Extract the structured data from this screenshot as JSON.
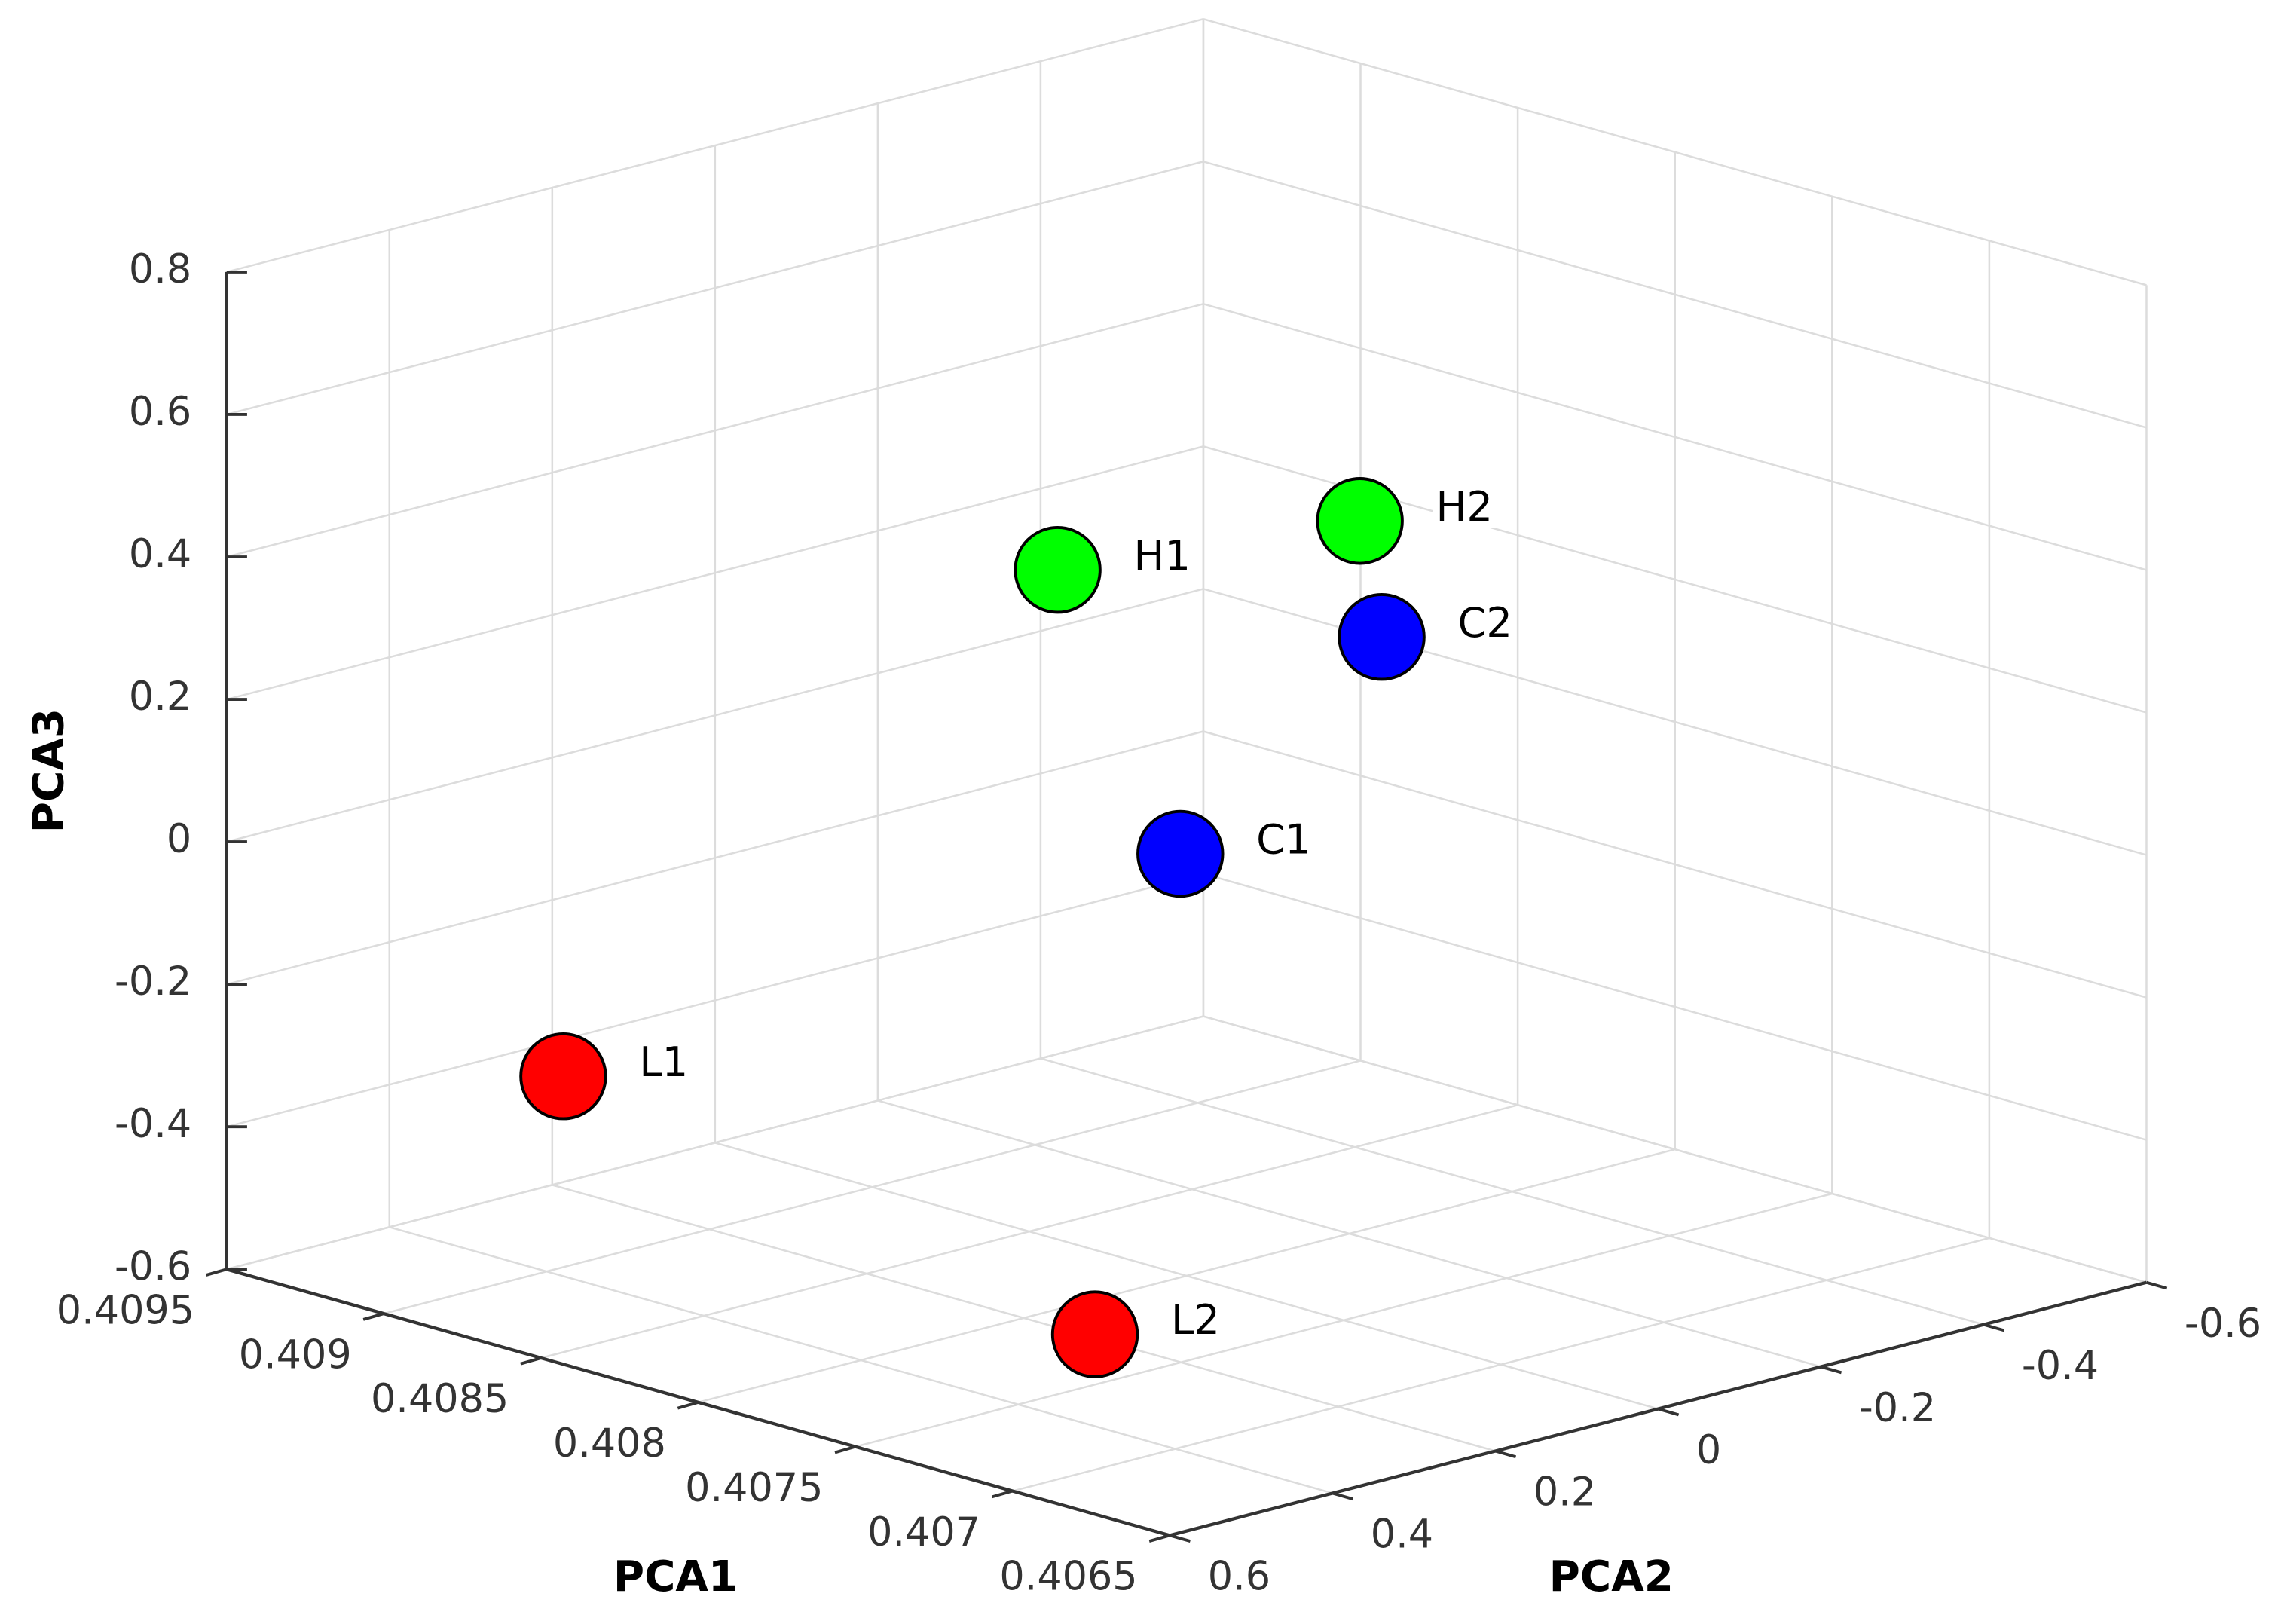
{
  "chart_data": {
    "type": "scatter3d",
    "xlabel": "PCA1",
    "ylabel": "PCA2",
    "zlabel": "PCA3",
    "xlim": [
      0.4065,
      0.4095
    ],
    "xticks": [
      0.4065,
      0.407,
      0.4075,
      0.408,
      0.4085,
      0.409,
      0.4095
    ],
    "ylim": [
      -0.6,
      0.6
    ],
    "yticks": [
      -0.6,
      -0.4,
      -0.2,
      0,
      0.2,
      0.4,
      0.6
    ],
    "zlim": [
      -0.6,
      0.8
    ],
    "zticks": [
      -0.6,
      -0.4,
      -0.2,
      0,
      0.2,
      0.4,
      0.6,
      0.8
    ],
    "grid": true,
    "series": [
      {
        "color": "#ff0000",
        "labels": [
          "L1",
          "L2"
        ],
        "x": [
          0.40874,
          0.40767
        ],
        "y": [
          0.48,
          0.24
        ],
        "z": [
          -0.27,
          -0.57
        ]
      },
      {
        "color": "#0000ff",
        "labels": [
          "C1",
          "C2"
        ],
        "x": [
          0.40802,
          0.40769
        ],
        "y": [
          0,
          -0.12
        ],
        "z": [
          -0.01,
          0.3
        ]
      },
      {
        "color": "#00ff00",
        "labels": [
          "H1",
          "H2"
        ],
        "x": [
          0.40841,
          0.40807
        ],
        "y": [
          0,
          -0.24
        ],
        "z": [
          0.34,
          0.38
        ]
      }
    ]
  }
}
